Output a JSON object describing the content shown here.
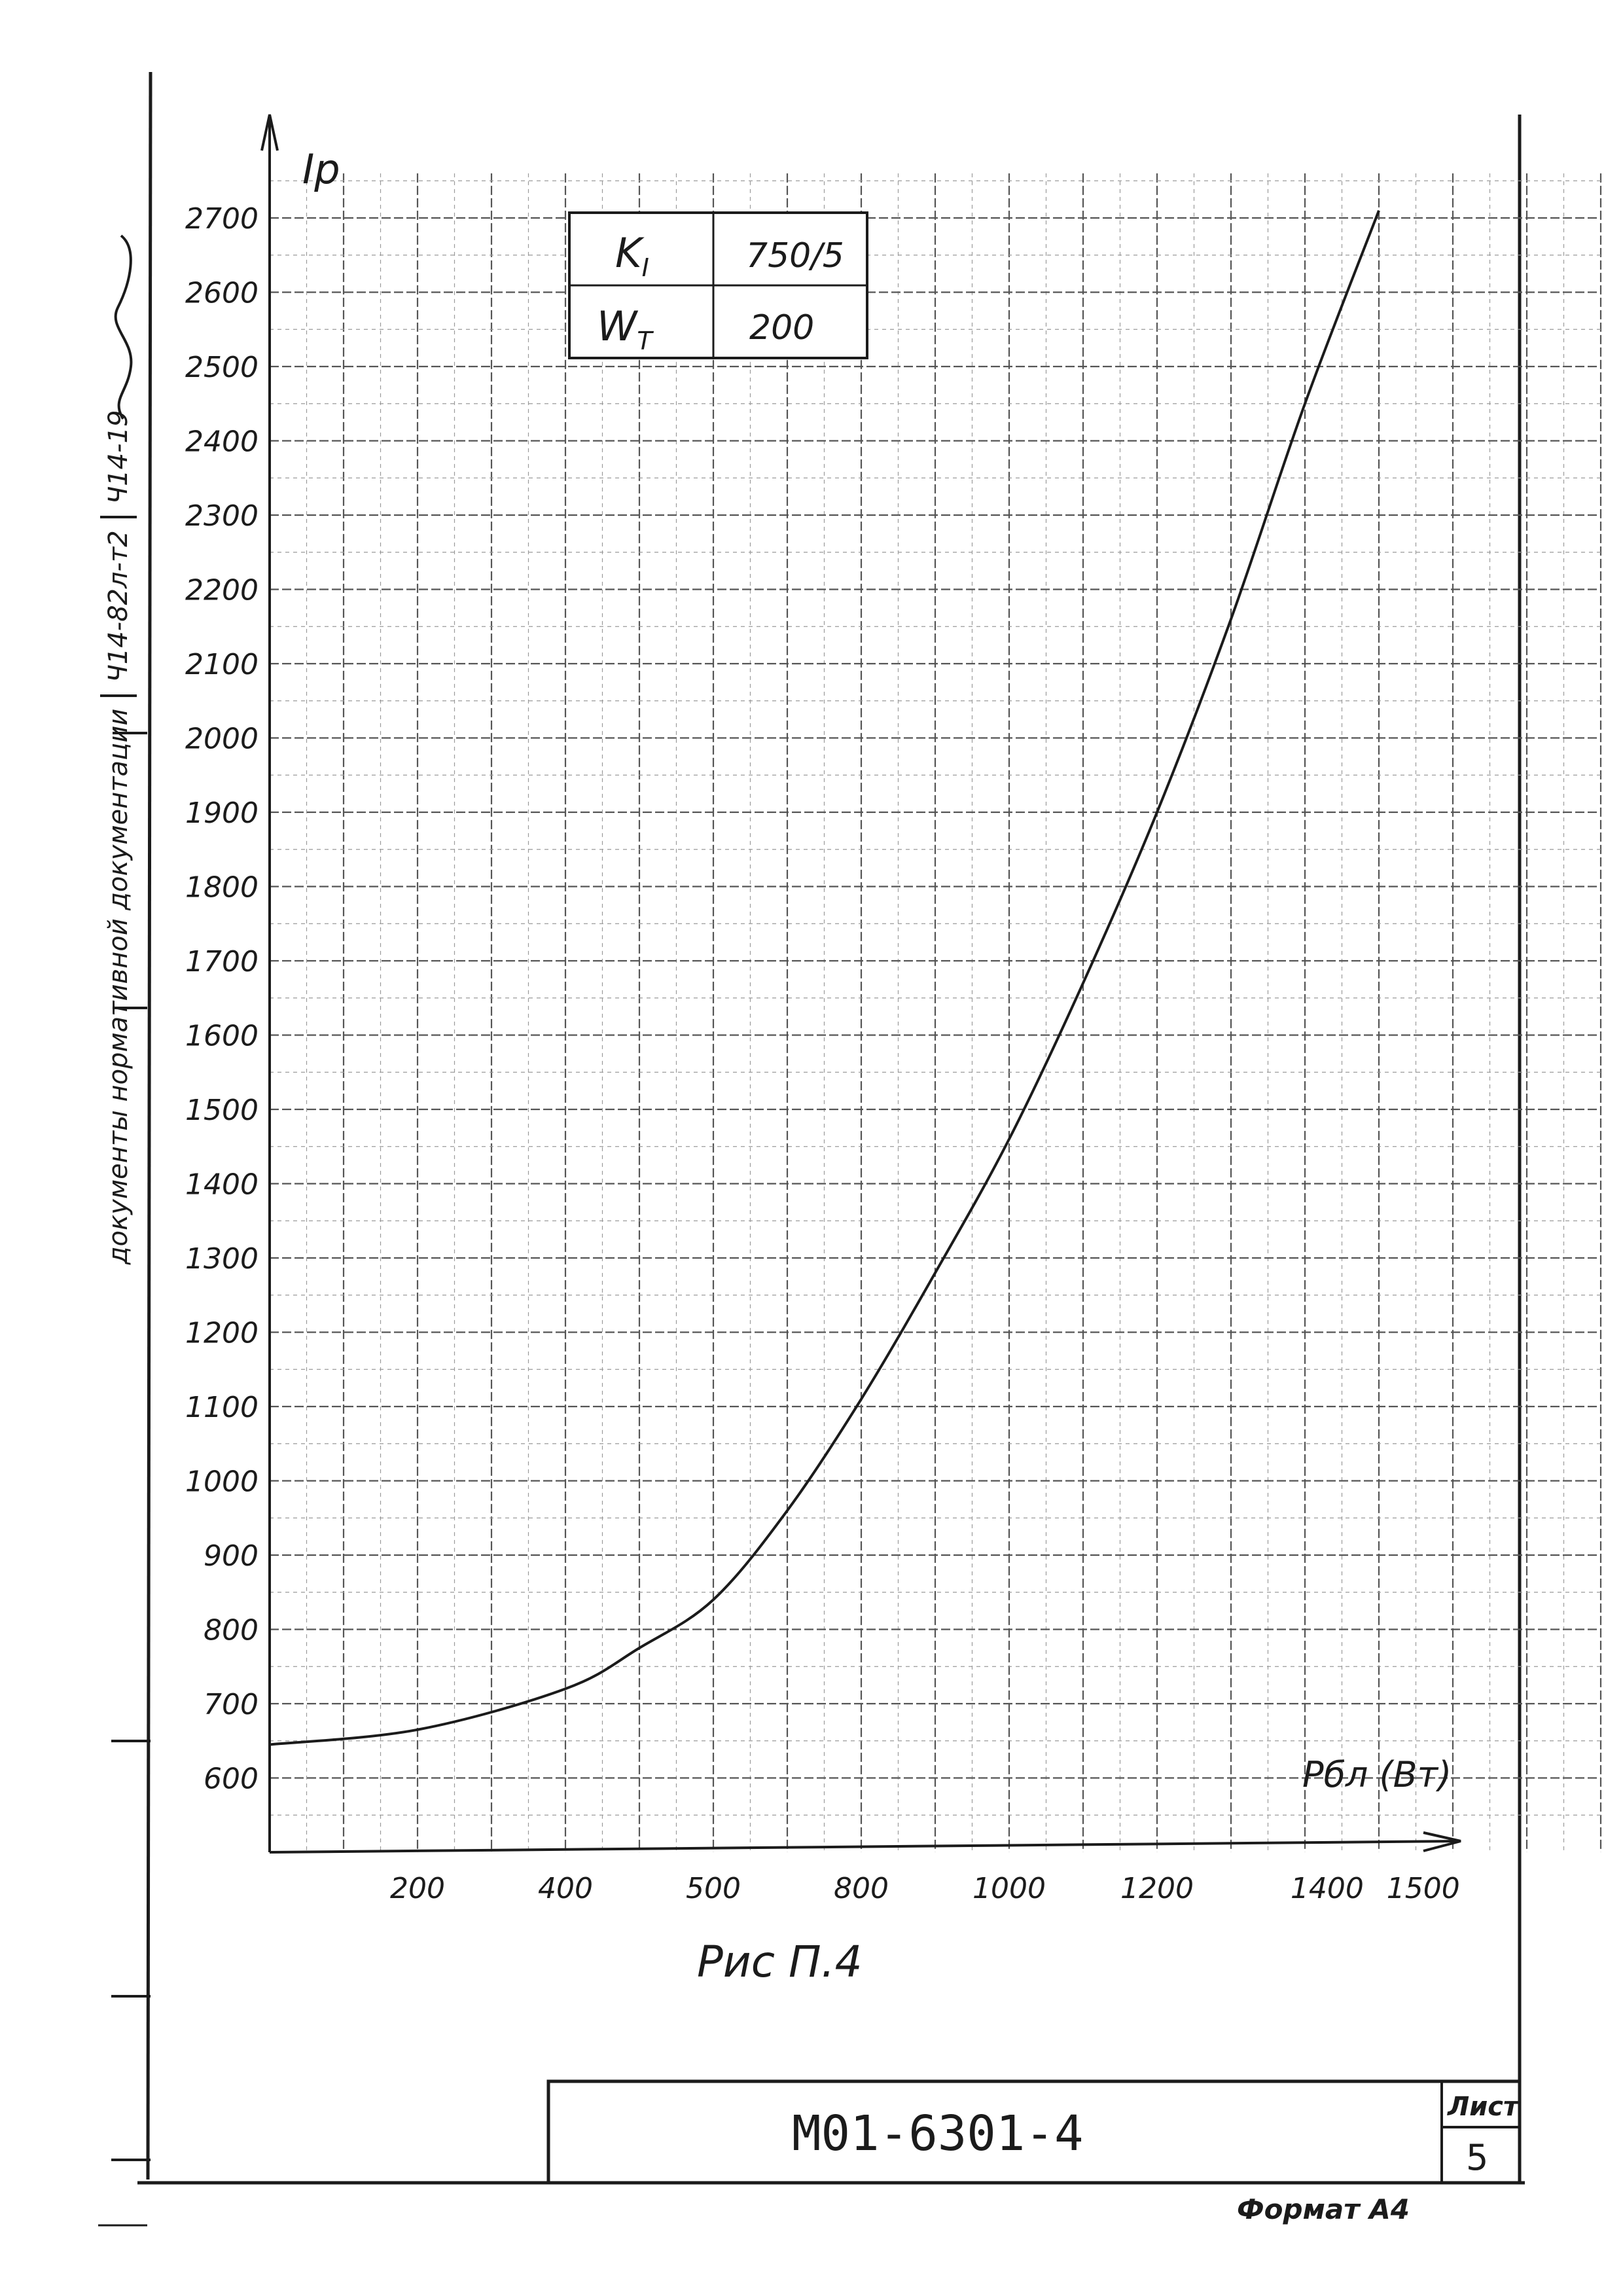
{
  "side_stamp": {
    "text": "документы нормативной документации",
    "code1": "Ч14-82л-т2",
    "code2": "Ч14-19"
  },
  "parameters_table": {
    "rows": [
      {
        "symbol": "K",
        "subscript": "I",
        "value": "750/5"
      },
      {
        "symbol": "W",
        "subscript": "T",
        "value": "200"
      }
    ]
  },
  "chart_data": {
    "type": "line",
    "ylabel": "Ip",
    "xlabel": "Pбл (Вт)",
    "x_tick_labels": [
      "200",
      "400",
      "500",
      "800",
      "1000",
      "1200",
      "1400",
      "1500"
    ],
    "y_ticks": [
      600,
      700,
      800,
      900,
      1000,
      1100,
      1200,
      1300,
      1400,
      1500,
      1600,
      1700,
      1800,
      1900,
      2000,
      2100,
      2200,
      2300,
      2400,
      2500,
      2600,
      2700
    ],
    "grid": true,
    "series": [
      {
        "x": [
          0,
          200,
          400,
          500,
          600,
          700,
          800,
          900,
          1000,
          1100,
          1200,
          1300,
          1400,
          1500
        ],
        "y": [
          645,
          665,
          720,
          775,
          840,
          960,
          1110,
          1280,
          1460,
          1670,
          1900,
          2160,
          2450,
          2710
        ]
      }
    ]
  },
  "caption": "Рис П.4",
  "title_block": {
    "doc_number": "М01-6301-4",
    "sheet_label": "Лист",
    "sheet_number": "5"
  },
  "format_label": "Формат А4"
}
